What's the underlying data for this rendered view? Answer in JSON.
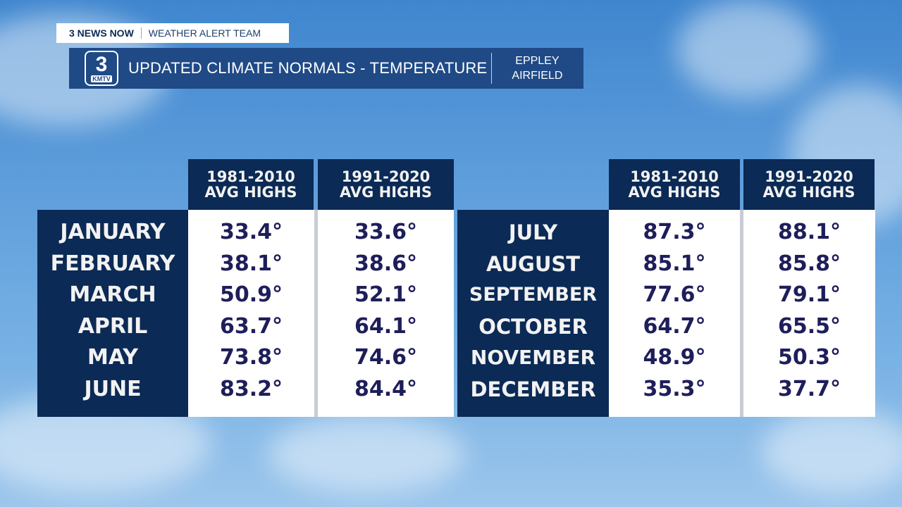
{
  "banner": {
    "brand": "3 NEWS NOW",
    "team": "WEATHER ALERT TEAM"
  },
  "title_bar": {
    "logo_number": "3",
    "logo_call": "KMTV",
    "title": "UPDATED CLIMATE NORMALS - TEMPERATURE",
    "location_line1": "EPPLEY",
    "location_line2": "AIRFIELD"
  },
  "headers": {
    "a_line1": "1981-2010",
    "a_line2": "AVG  HIGHS",
    "b_line1": "1991-2020",
    "b_line2": "AVG  HIGHS"
  },
  "left": {
    "months": [
      "JANUARY",
      "FEBRUARY",
      "MARCH",
      "APRIL",
      "MAY",
      "JUNE"
    ],
    "old": [
      "33.4°",
      "38.1°",
      "50.9°",
      "63.7°",
      "73.8°",
      "83.2°"
    ],
    "new": [
      "33.6°",
      "38.6°",
      "52.1°",
      "64.1°",
      "74.6°",
      "84.4°"
    ]
  },
  "right": {
    "months": [
      "JULY",
      "AUGUST",
      "SEPTEMBER",
      "OCTOBER",
      "NOVEMBER",
      "DECEMBER"
    ],
    "old": [
      "87.3°",
      "85.1°",
      "77.6°",
      "64.7°",
      "48.9°",
      "35.3°"
    ],
    "new": [
      "88.1°",
      "85.8°",
      "79.1°",
      "65.5°",
      "50.3°",
      "37.7°"
    ]
  }
}
